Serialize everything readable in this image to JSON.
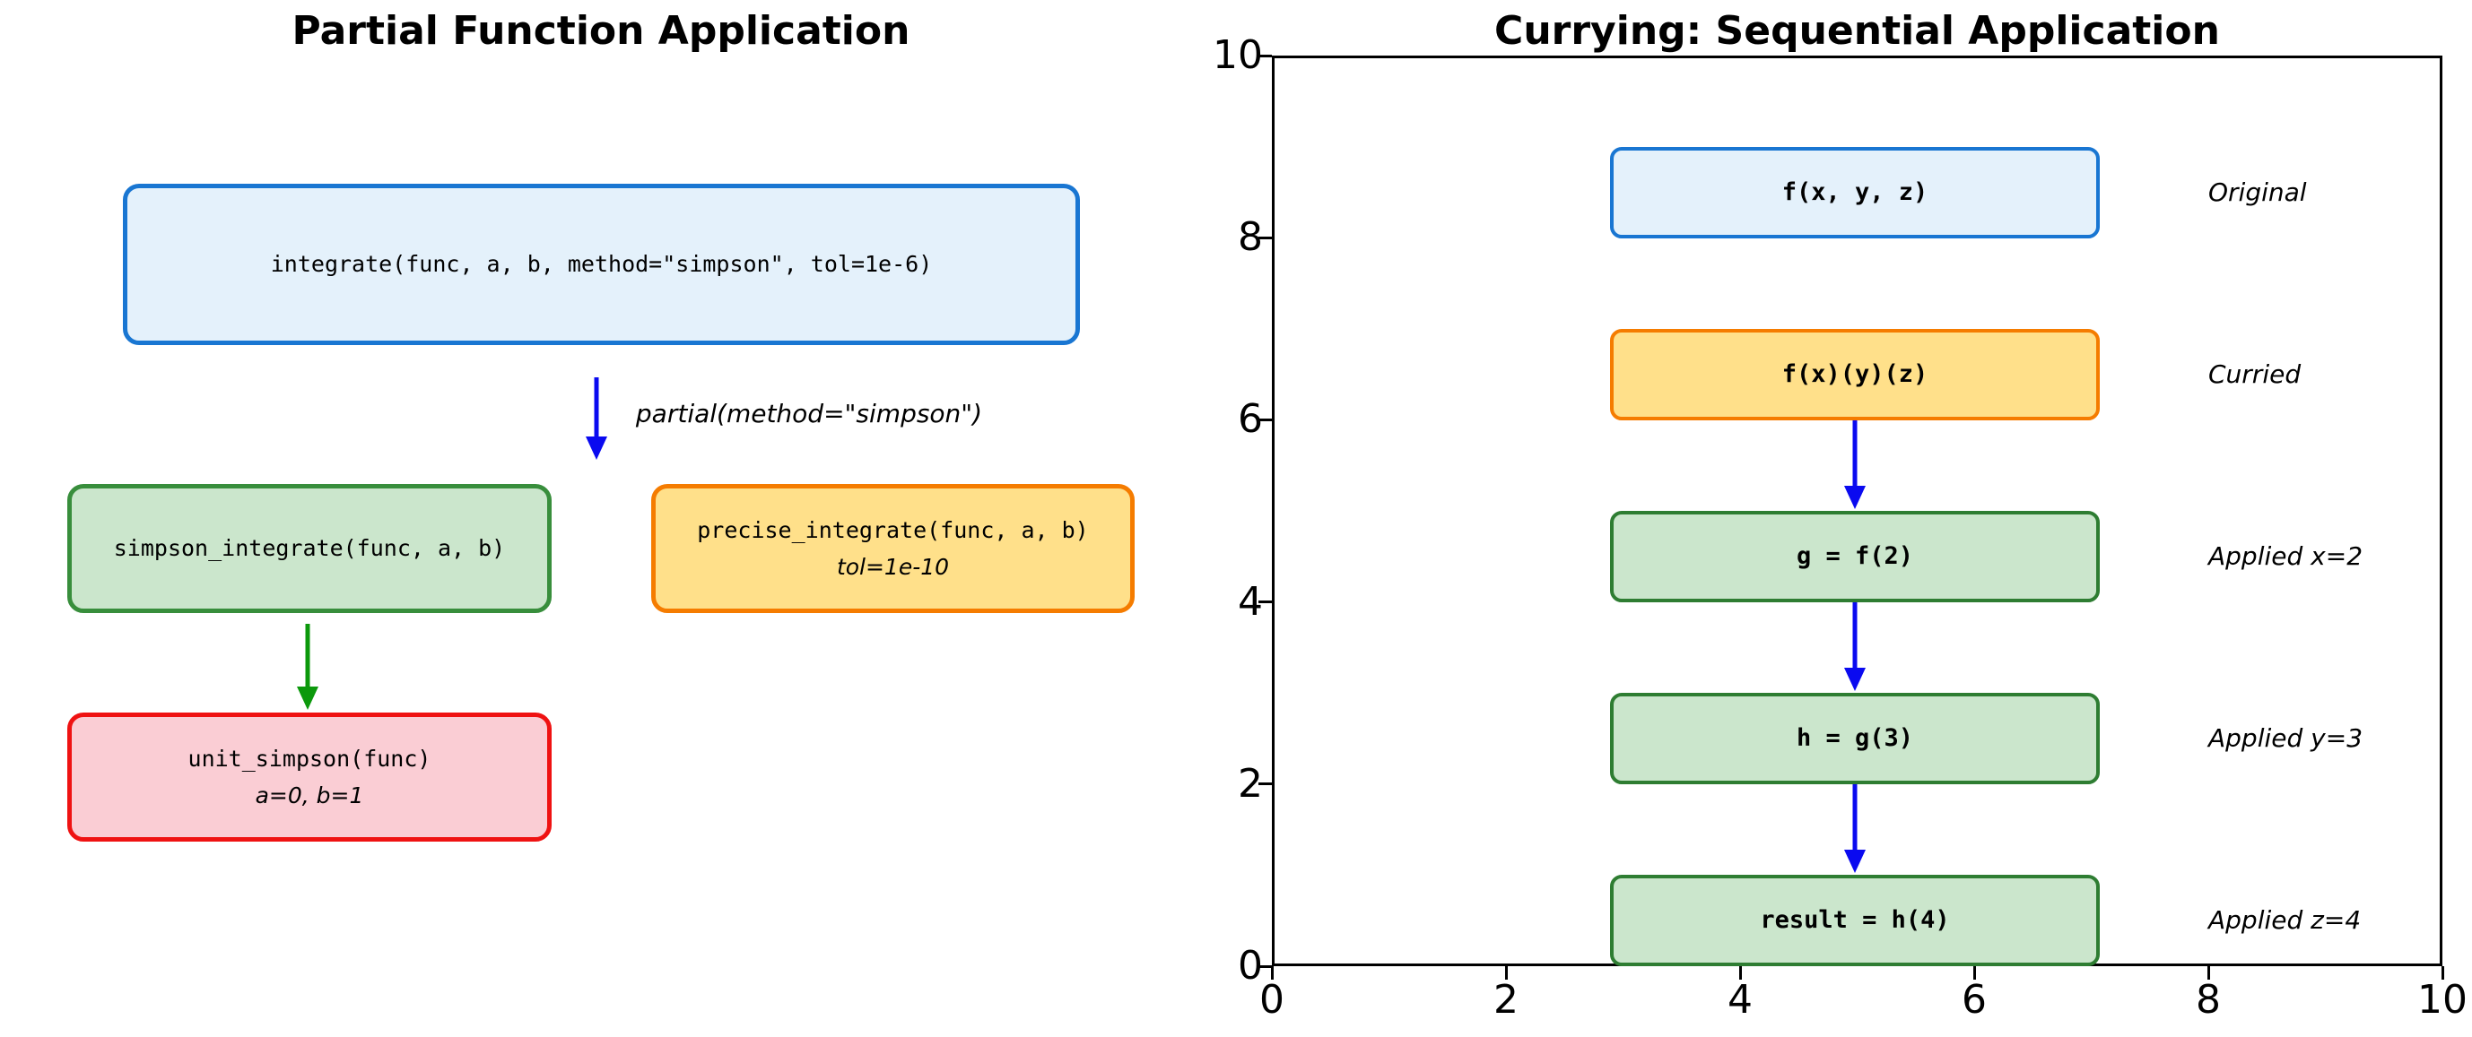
{
  "left_panel": {
    "title": "Partial Function Application",
    "integrate_box": {
      "label": "integrate(func, a, b, method=\"simpson\", tol=1e-6)",
      "fill": "#E4F1FB",
      "border": "#1976D2"
    },
    "partial_annotation": "partial(method=\"simpson\")",
    "partial_arrow_color": "#0A0AF0",
    "simpson_box": {
      "label": "simpson_integrate(func, a, b)",
      "fill": "#CBE6CC",
      "border": "#388E3C"
    },
    "precise_box": {
      "label": "precise_integrate(func, a, b)",
      "sublabel": "tol=1e-10",
      "fill": "#FFE08A",
      "border": "#F57C00"
    },
    "unit_arrow_color": "#0C990C",
    "unit_box": {
      "label": "unit_simpson(func)",
      "sublabel": "a=0, b=1",
      "fill": "#FACDD4",
      "border": "#EF1212"
    }
  },
  "right_panel": {
    "title": "Currying: Sequential Application",
    "x_tick_labels": [
      "0",
      "2",
      "4",
      "6",
      "8",
      "10"
    ],
    "y_tick_labels": [
      "0",
      "2",
      "4",
      "6",
      "8",
      "10"
    ],
    "arrow_color": "#0A0AF0",
    "boxes": [
      {
        "label": "f(x, y, z)",
        "annotation": "Original",
        "fill": "#E4F1FB",
        "border": "#1976D2"
      },
      {
        "label": "f(x)(y)(z)",
        "annotation": "Curried",
        "fill": "#FFE08A",
        "border": "#F57C00"
      },
      {
        "label": "g = f(2)",
        "annotation": "Applied x=2",
        "fill": "#CBE6CC",
        "border": "#2E7D32"
      },
      {
        "label": "h = g(3)",
        "annotation": "Applied y=3",
        "fill": "#CBE6CC",
        "border": "#2E7D32"
      },
      {
        "label": "result = h(4)",
        "annotation": "Applied z=4",
        "fill": "#CBE6CC",
        "border": "#2E7D32"
      }
    ]
  }
}
